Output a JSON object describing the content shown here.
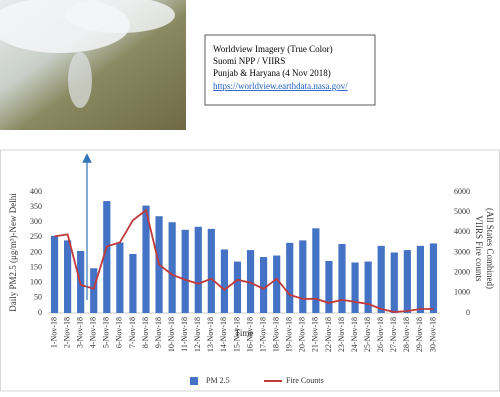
{
  "info_box": {
    "lines": [
      "Worldview Imagery (True Color)",
      "Suomi NPP / VIIRS",
      "Punjab & Haryana (4 Nov 2018)"
    ],
    "link": "https://worldview.earthdata.nasa.gov/"
  },
  "chart_data": {
    "type": "bar",
    "xlabel": "Time",
    "ylabel": "Daily PM2.5 (μg/m³)-New Delhi",
    "y2label": [
      "VIIRS Fire counts",
      "(All States Combined)"
    ],
    "categories": [
      "1-Nov-18",
      "2-Nov-18",
      "3-Nov-18",
      "4-Nov-18",
      "5-Nov-18",
      "6-Nov-18",
      "7-Nov-18",
      "8-Nov-18",
      "9-Nov-18",
      "10-Nov-18",
      "11-Nov-18",
      "12-Nov-18",
      "13-Nov-18",
      "14-Nov-18",
      "15-Nov-18",
      "16-Nov-18",
      "17-Nov-18",
      "18-Nov-18",
      "19-Nov-18",
      "20-Nov-18",
      "21-Nov-18",
      "22-Nov-18",
      "23-Nov-18",
      "24-Nov-18",
      "25-Nov-18",
      "26-Nov-18",
      "27-Nov-18",
      "28-Nov-18",
      "29-Nov-18",
      "30-Nov-18"
    ],
    "series": [
      {
        "name": "PM 2.5",
        "type": "bar",
        "color": "#4472c4",
        "values": [
          255,
          240,
          205,
          148,
          370,
          233,
          195,
          355,
          320,
          300,
          275,
          285,
          278,
          210,
          170,
          208,
          185,
          190,
          232,
          240,
          280,
          172,
          228,
          167,
          170,
          222,
          200,
          208,
          222,
          230
        ]
      },
      {
        "name": "Fire Counts",
        "type": "line",
        "axis": "y2",
        "color": "#c0393b",
        "values": [
          3800,
          3900,
          1400,
          1200,
          3300,
          3500,
          4600,
          5100,
          2400,
          1900,
          1650,
          1450,
          1700,
          1150,
          1650,
          1500,
          1200,
          1700,
          900,
          700,
          700,
          500,
          650,
          550,
          450,
          200,
          50,
          100,
          200,
          200
        ]
      }
    ],
    "ylim": [
      0,
      400
    ],
    "yticks": [
      0,
      50,
      100,
      150,
      200,
      250,
      300,
      350,
      400
    ],
    "y2lim": [
      0,
      6000
    ],
    "y2ticks": [
      0,
      1000,
      2000,
      3000,
      4000,
      5000,
      6000
    ],
    "grid": false,
    "legend": "bottom"
  }
}
